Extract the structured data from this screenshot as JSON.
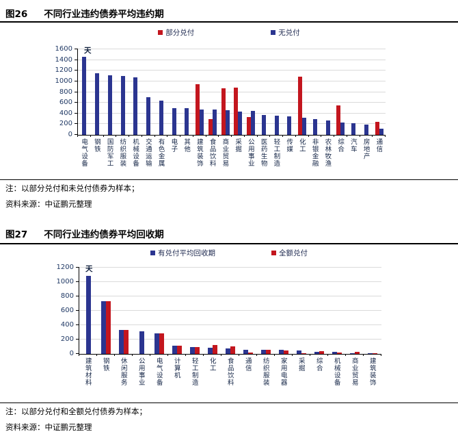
{
  "figures": [
    {
      "number": "图26",
      "title": "不同行业违约债券平均违约期",
      "note": "注：以部分兑付和未兑付债券为样本；",
      "source": "资料来源：中证鹏元整理"
    },
    {
      "number": "图27",
      "title": "不同行业违约债券平均回收期",
      "note": "注：以部分兑付和全额兑付债券为样本；",
      "source": "资料来源：中证鹏元整理"
    }
  ],
  "chart_data": [
    {
      "type": "bar",
      "title": "不同行业违约债券平均违约期",
      "unit_label": "天",
      "ylim": [
        0,
        1600
      ],
      "yticks": [
        0,
        200,
        400,
        600,
        800,
        1000,
        1200,
        1400,
        1600
      ],
      "grid": true,
      "legend_position": "top",
      "axis_text_color": "#1F3864",
      "categories": [
        "电气设备",
        "钢铁",
        "国防军工",
        "纺织服装",
        "机械设备",
        "交通运输",
        "有色金属",
        "电子",
        "其他",
        "建筑装饰",
        "食品饮料",
        "商业贸易",
        "采掘",
        "公用事业",
        "医药生物",
        "轻工制造",
        "传媒",
        "化工",
        "非银金融",
        "农林牧渔",
        "综合",
        "汽车",
        "房地产",
        "通信"
      ],
      "series": [
        {
          "name": "部分兑付",
          "color": "#C3161E",
          "values": [
            0,
            0,
            0,
            0,
            0,
            0,
            0,
            0,
            0,
            950,
            290,
            870,
            880,
            330,
            0,
            0,
            0,
            1090,
            0,
            0,
            545,
            0,
            0,
            245
          ]
        },
        {
          "name": "无兑付",
          "color": "#2B3590",
          "values": [
            1460,
            1150,
            1110,
            1095,
            1075,
            700,
            640,
            505,
            495,
            470,
            480,
            460,
            435,
            445,
            375,
            360,
            340,
            320,
            300,
            270,
            225,
            220,
            190,
            110
          ]
        }
      ]
    },
    {
      "type": "bar",
      "title": "不同行业违约债券平均回收期",
      "unit_label": "天",
      "ylim": [
        0,
        1200
      ],
      "yticks": [
        0,
        200,
        400,
        600,
        800,
        1000,
        1200
      ],
      "grid": true,
      "legend_position": "top",
      "axis_text_color": "#1F3864",
      "categories": [
        "建筑材料",
        "钢铁",
        "休闲服务",
        "公用事业",
        "电气设备",
        "计算机",
        "轻工制造",
        "化工",
        "食品饮料",
        "通信",
        "纺织服装",
        "家用电器",
        "采掘",
        "综合",
        "机械设备",
        "商业贸易",
        "建筑装饰"
      ],
      "series": [
        {
          "name": "有兑付平均回收期",
          "color": "#2B3590",
          "values": [
            1090,
            730,
            330,
            310,
            285,
            110,
            95,
            90,
            75,
            60,
            60,
            55,
            50,
            25,
            25,
            10,
            5
          ]
        },
        {
          "name": "全额兑付",
          "color": "#C3161E",
          "values": [
            0,
            730,
            330,
            0,
            285,
            110,
            95,
            120,
            105,
            15,
            55,
            50,
            12,
            40,
            20,
            25,
            8
          ]
        }
      ]
    }
  ]
}
